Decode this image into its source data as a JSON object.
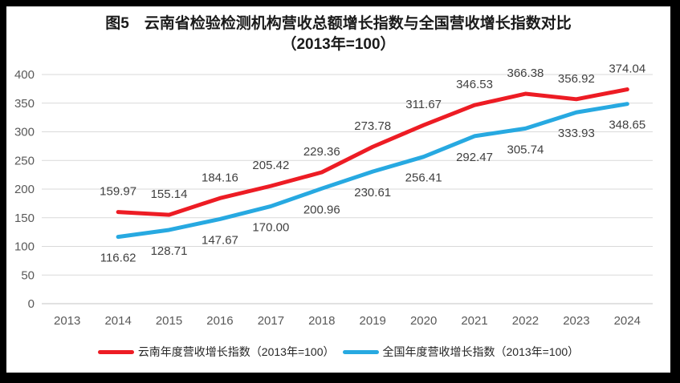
{
  "window": {
    "frame_color": "#000000",
    "panel_color": "#ffffff"
  },
  "title": {
    "line1": "图5　云南省检验检测机构营收总额增长指数与全国营收增长指数对比",
    "line2": "（2013年=100）"
  },
  "chart_data": {
    "type": "line",
    "title": "图5 云南省检验检测机构营收总额增长指数与全国营收增长指数对比（2013年=100）",
    "categories": [
      "2013",
      "2014",
      "2015",
      "2016",
      "2017",
      "2018",
      "2019",
      "2020",
      "2021",
      "2022",
      "2023",
      "2024"
    ],
    "series": [
      {
        "name": "云南年度营收增长指数（2013年=100）",
        "color": "#ed1c24",
        "start_category": "2014",
        "x_start_index": 1,
        "label_side": "above",
        "values": [
          159.97,
          155.14,
          184.16,
          205.42,
          229.36,
          273.78,
          311.67,
          346.53,
          366.38,
          356.92,
          374.04
        ]
      },
      {
        "name": "全国年度营收增长指数（2013年=100）",
        "color": "#27a9e1",
        "start_category": "2014",
        "x_start_index": 1,
        "label_side": "below",
        "values": [
          116.62,
          128.71,
          147.67,
          170.0,
          200.96,
          230.61,
          256.41,
          292.47,
          305.74,
          333.93,
          348.65
        ]
      }
    ],
    "xlabel": "",
    "ylabel": "",
    "ylim": [
      0,
      400
    ],
    "ytick_step": 50,
    "yticks": [
      0,
      50,
      100,
      150,
      200,
      250,
      300,
      350,
      400
    ],
    "grid": true,
    "gridline_color": "#d9d9d9",
    "axis_label_color": "#595959",
    "data_label_color": "#404040",
    "legend_position": "bottom"
  }
}
